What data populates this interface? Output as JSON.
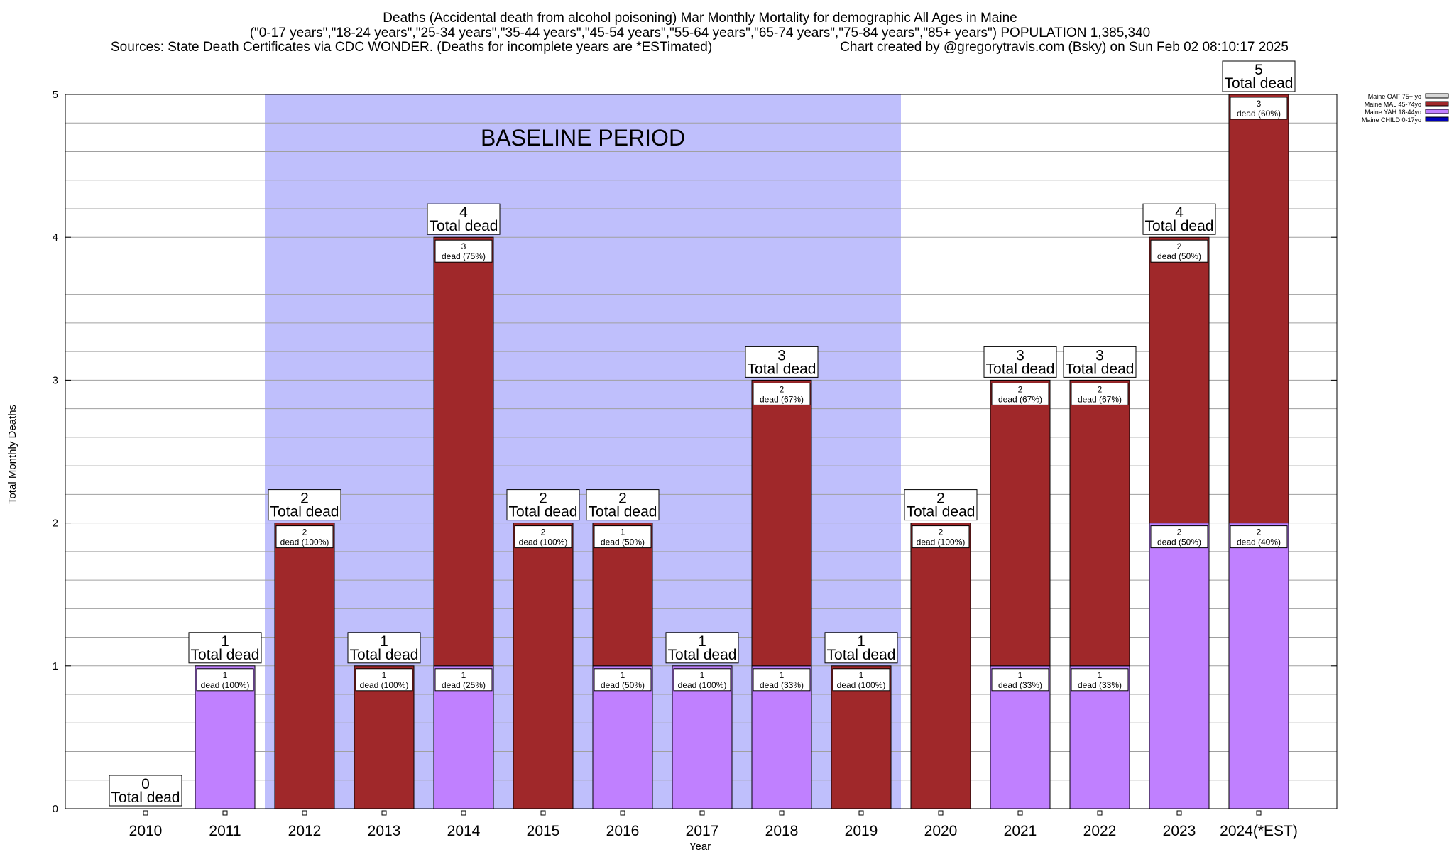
{
  "chart_data": {
    "type": "bar",
    "stacked": true,
    "title_lines": [
      "Deaths (Accidental death from alcohol poisoning) Mar Monthly Mortality for demographic All Ages in Maine",
      "(\"0-17 years\",\"18-24 years\",\"25-34 years\",\"35-44 years\",\"45-54 years\",\"55-64 years\",\"65-74 years\",\"75-84 years\",\"85+ years\") POPULATION 1,385,340"
    ],
    "sources_left": "Sources: State Death Certificates via CDC WONDER. (Deaths for incomplete years are *ESTimated)",
    "sources_right": "Chart created by @gregorytravis.com (Bsky) on Sun Feb 02 08:10:17 2025",
    "xlabel": "Year",
    "ylabel": "Total Monthly Deaths",
    "ylim": [
      0,
      5
    ],
    "y_ticks": [
      0,
      1,
      2,
      3,
      4,
      5
    ],
    "y_minor_step": 0.2,
    "categories": [
      "2010",
      "2011",
      "2012",
      "2013",
      "2014",
      "2015",
      "2016",
      "2017",
      "2018",
      "2019",
      "2020",
      "2021",
      "2022",
      "2023",
      "2024(*EST)"
    ],
    "baseline": {
      "label": "BASELINE PERIOD",
      "from_category": "2012",
      "to_category": "2019",
      "color": "#bfbffc"
    },
    "series": [
      {
        "name": "Maine CHILD 0-17yo",
        "color": "#0000b8",
        "values": [
          0,
          0,
          0,
          0,
          0,
          0,
          0,
          0,
          0,
          0,
          0,
          0,
          0,
          0,
          0
        ]
      },
      {
        "name": "Maine YAH 18-44yo",
        "color": "#c080ff",
        "values": [
          0,
          1,
          0,
          0,
          1,
          0,
          1,
          1,
          1,
          0,
          0,
          1,
          1,
          2,
          2
        ]
      },
      {
        "name": "Maine MAL 45-74yo",
        "color": "#a0282a",
        "values": [
          0,
          0,
          2,
          1,
          3,
          2,
          1,
          0,
          2,
          1,
          2,
          2,
          2,
          2,
          3
        ]
      },
      {
        "name": "Maine OAF 75+ yo",
        "color": "#d8d8d8",
        "values": [
          0,
          0,
          0,
          0,
          0,
          0,
          0,
          0,
          0,
          0,
          0,
          0,
          0,
          0,
          0
        ]
      }
    ],
    "legend_order": [
      "Maine OAF 75+ yo",
      "Maine MAL 45-74yo",
      "Maine YAH 18-44yo",
      "Maine CHILD 0-17yo"
    ],
    "legend_position": "top-right",
    "totals": [
      0,
      1,
      2,
      1,
      4,
      2,
      2,
      1,
      3,
      1,
      2,
      3,
      3,
      4,
      5
    ],
    "total_suffix": "Total dead",
    "segment_labels": [
      [],
      [
        {
          "series": "Maine YAH 18-44yo",
          "count": "1",
          "text": "dead (100%)"
        }
      ],
      [
        {
          "series": "Maine MAL 45-74yo",
          "count": "2",
          "text": "dead (100%)"
        }
      ],
      [
        {
          "series": "Maine MAL 45-74yo",
          "count": "1",
          "text": "dead (100%)"
        }
      ],
      [
        {
          "series": "Maine YAH 18-44yo",
          "count": "1",
          "text": "dead (25%)"
        },
        {
          "series": "Maine MAL 45-74yo",
          "count": "3",
          "text": "dead (75%)"
        }
      ],
      [
        {
          "series": "Maine MAL 45-74yo",
          "count": "2",
          "text": "dead (100%)"
        }
      ],
      [
        {
          "series": "Maine YAH 18-44yo",
          "count": "1",
          "text": "dead (50%)"
        },
        {
          "series": "Maine MAL 45-74yo",
          "count": "1",
          "text": "dead (50%)"
        }
      ],
      [
        {
          "series": "Maine YAH 18-44yo",
          "count": "1",
          "text": "dead (100%)"
        }
      ],
      [
        {
          "series": "Maine YAH 18-44yo",
          "count": "1",
          "text": "dead (33%)"
        },
        {
          "series": "Maine MAL 45-74yo",
          "count": "2",
          "text": "dead (67%)"
        }
      ],
      [
        {
          "series": "Maine MAL 45-74yo",
          "count": "1",
          "text": "dead (100%)"
        }
      ],
      [
        {
          "series": "Maine MAL 45-74yo",
          "count": "2",
          "text": "dead (100%)"
        }
      ],
      [
        {
          "series": "Maine YAH 18-44yo",
          "count": "1",
          "text": "dead (33%)"
        },
        {
          "series": "Maine MAL 45-74yo",
          "count": "2",
          "text": "dead (67%)"
        }
      ],
      [
        {
          "series": "Maine YAH 18-44yo",
          "count": "1",
          "text": "dead (33%)"
        },
        {
          "series": "Maine MAL 45-74yo",
          "count": "2",
          "text": "dead (67%)"
        }
      ],
      [
        {
          "series": "Maine YAH 18-44yo",
          "count": "2",
          "text": "dead (50%)"
        },
        {
          "series": "Maine MAL 45-74yo",
          "count": "2",
          "text": "dead (50%)"
        }
      ],
      [
        {
          "series": "Maine YAH 18-44yo",
          "count": "2",
          "text": "dead (40%)"
        },
        {
          "series": "Maine MAL 45-74yo",
          "count": "3",
          "text": "dead (60%)"
        }
      ]
    ]
  }
}
